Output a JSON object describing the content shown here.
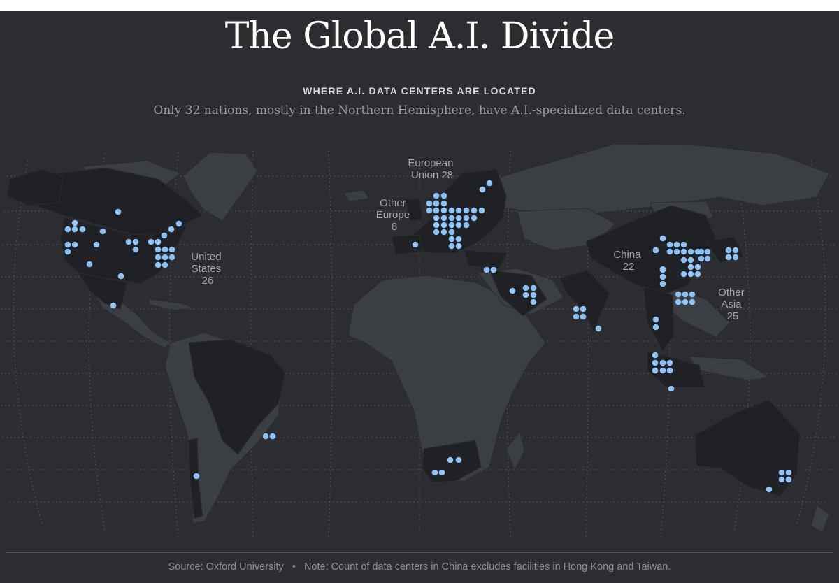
{
  "header": {
    "title": "The Global A.I. Divide",
    "kicker": "WHERE A.I. DATA CENTERS ARE LOCATED",
    "subtitle": "Only 32 nations, mostly in the Northern Hemisphere, have A.I.-specialized data centers."
  },
  "regions": [
    {
      "id": "united-states",
      "lines": [
        "United",
        "States",
        "26"
      ]
    },
    {
      "id": "european-union",
      "lines": [
        "European",
        "Union 28"
      ]
    },
    {
      "id": "other-europe",
      "lines": [
        "Other",
        "Europe",
        "8"
      ]
    },
    {
      "id": "china",
      "lines": [
        "China",
        "22"
      ]
    },
    {
      "id": "other-asia",
      "lines": [
        "Other",
        "Asia",
        "25"
      ]
    }
  ],
  "colors": {
    "background": "#2b2d30",
    "land": "#3b3e42",
    "land_with_data_centers": "#1f2124",
    "data_center_dot": "#8ec3f7",
    "graticule": "#5b5e63"
  },
  "footer": {
    "source": "Source: Oxford University",
    "separator": "•",
    "note": "Note: Count of data centers in China excludes facilities in Hong Kong and Taiwan."
  }
}
